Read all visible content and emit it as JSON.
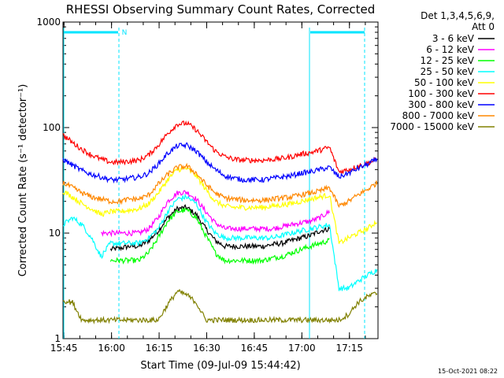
{
  "chart_data": {
    "type": "line",
    "title": "RHESSI Observing Summary Count Rates, Corrected",
    "xlabel": "Start Time (09-Jul-09 15:44:42)",
    "ylabel": "Corrected Count Rate (s⁻¹ detector⁻¹)",
    "yscale": "log",
    "ylim": [
      1,
      1000
    ],
    "xlim": [
      "15:44:42",
      "17:24:00"
    ],
    "x_ticks": [
      "15:45",
      "16:00",
      "16:15",
      "16:30",
      "16:45",
      "17:00",
      "17:15"
    ],
    "y_ticks": [
      "1",
      "10",
      "100",
      "1000"
    ],
    "legend_header": [
      "Det 1,3,4,5,6,9,",
      "Att 0"
    ],
    "legend_position": "right",
    "flag_label": "N",
    "timestamp": "15-Oct-2021 08:22",
    "x_minutes": [
      0,
      3,
      6,
      9,
      12,
      15,
      18,
      21,
      24,
      27,
      30,
      33,
      36,
      39,
      42,
      45,
      48,
      51,
      54,
      57,
      60,
      63,
      66,
      69,
      72,
      75,
      78,
      81,
      84,
      87,
      90,
      93,
      96,
      99
    ],
    "series": [
      {
        "name": "3 - 6 keV",
        "color": "#000000",
        "values": [
          null,
          null,
          null,
          null,
          null,
          7,
          7.2,
          7.5,
          7.5,
          8.5,
          10.5,
          14,
          17,
          17.5,
          15,
          11,
          8.5,
          7.5,
          7.5,
          7.5,
          7.5,
          7.5,
          7.8,
          8,
          8.5,
          9,
          9.5,
          10.5,
          11,
          null,
          null,
          null,
          null,
          null
        ]
      },
      {
        "name": "6 - 12 keV",
        "color": "#ff00ff",
        "values": [
          null,
          null,
          null,
          null,
          10,
          10,
          10,
          10,
          10,
          11,
          14,
          20,
          24,
          24.5,
          21,
          16,
          12.5,
          11,
          11,
          11,
          11,
          11,
          11,
          11.5,
          12,
          12.5,
          13,
          14,
          16,
          null,
          null,
          null,
          null,
          null
        ]
      },
      {
        "name": "12 - 25 keV",
        "color": "#00ff00",
        "values": [
          null,
          null,
          null,
          null,
          null,
          5.5,
          5.5,
          5.5,
          5.5,
          6.5,
          9,
          13,
          16,
          16.5,
          14,
          9.5,
          6.5,
          5.5,
          5.5,
          5.5,
          5.5,
          5.5,
          5.8,
          6,
          6.5,
          7,
          7.5,
          8,
          8.5,
          null,
          null,
          null,
          null,
          null
        ]
      },
      {
        "name": "25 - 50 keV",
        "color": "#00ffff",
        "values": [
          12,
          14,
          12,
          9,
          6,
          8,
          8,
          8,
          8,
          9,
          11,
          16,
          21,
          22,
          19,
          13,
          10,
          9,
          9,
          9,
          9,
          9,
          9,
          9.5,
          10,
          10.5,
          11,
          11.5,
          12,
          3,
          3,
          3.5,
          4,
          4.5
        ]
      },
      {
        "name": "50 - 100 keV",
        "color": "#ffff00",
        "values": [
          25,
          22,
          19,
          17,
          15,
          16,
          16,
          16.5,
          17,
          19,
          24,
          32,
          40,
          41,
          35,
          26,
          20,
          18,
          17.5,
          17.5,
          17.5,
          17.5,
          18,
          18.5,
          19,
          20,
          21,
          22,
          23,
          8,
          9,
          10,
          11,
          13
        ]
      },
      {
        "name": "100 - 300 keV",
        "color": "#ff0000",
        "values": [
          85,
          72,
          62,
          55,
          50,
          47,
          47,
          48,
          49,
          55,
          68,
          88,
          108,
          110,
          95,
          75,
          60,
          53,
          50,
          49,
          49,
          49,
          50,
          51,
          53,
          56,
          58,
          61,
          65,
          38,
          40,
          43,
          46,
          50
        ]
      },
      {
        "name": "300 - 800 keV",
        "color": "#0000ff",
        "values": [
          50,
          44,
          39,
          36,
          34,
          32,
          32,
          33,
          34,
          37,
          45,
          57,
          67,
          68,
          60,
          48,
          40,
          35,
          33,
          32,
          32,
          32,
          33,
          34,
          35,
          37,
          38,
          40,
          42,
          34,
          37,
          41,
          45,
          50
        ]
      },
      {
        "name": "800 - 7000 keV",
        "color": "#ff8800",
        "values": [
          30,
          27,
          24,
          22,
          21,
          20,
          20,
          21,
          21,
          23,
          29,
          36,
          42,
          43,
          37,
          29,
          24,
          21.5,
          21,
          20.5,
          20.5,
          20.5,
          21,
          21.5,
          22,
          23,
          24,
          25,
          27,
          18,
          20,
          23,
          26,
          30
        ]
      },
      {
        "name": "7000 - 15000 keV",
        "color": "#808000",
        "values": [
          2.3,
          2.2,
          1.5,
          1.5,
          1.5,
          1.5,
          1.5,
          1.5,
          1.5,
          1.5,
          1.5,
          2.1,
          2.8,
          2.6,
          2.2,
          1.5,
          1.5,
          1.5,
          1.5,
          1.5,
          1.5,
          1.5,
          1.5,
          1.5,
          1.5,
          1.5,
          1.5,
          1.5,
          1.5,
          1.5,
          1.7,
          2.2,
          2.5,
          2.7
        ]
      }
    ]
  }
}
